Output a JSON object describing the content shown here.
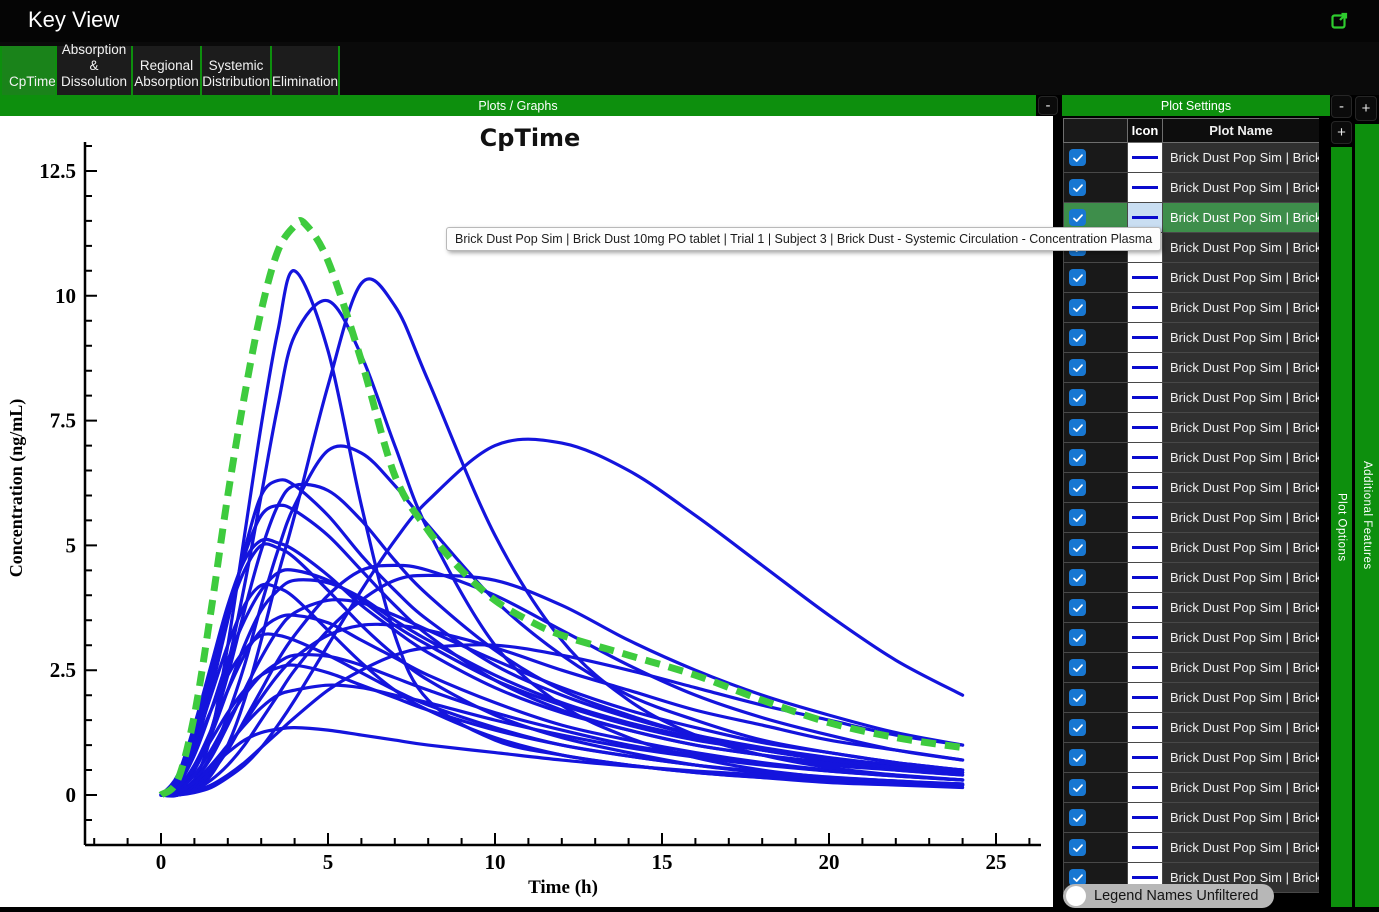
{
  "window": {
    "title": "Key View"
  },
  "tabs": [
    {
      "label": "CpTime",
      "active": true
    },
    {
      "label": "Absorption & Dissolution",
      "active": false
    },
    {
      "label": "Regional Absorption",
      "active": false
    },
    {
      "label": "Systemic Distribution",
      "active": false
    },
    {
      "label": "Elimination",
      "active": false
    }
  ],
  "panels": {
    "plots": {
      "header": "Plots / Graphs",
      "collapse_label": "-"
    },
    "settings": {
      "header": "Plot Settings",
      "collapse_label": "-"
    },
    "plot_options": {
      "label": "Plot Options",
      "expand_label": "+"
    },
    "additional_features": {
      "label": "Additional Features",
      "expand_label": "+"
    }
  },
  "tooltip": {
    "text": "Brick Dust Pop Sim | Brick Dust 10mg PO tablet | Trial 1 | Subject 3 | Brick Dust - Systemic Circulation - Concentration Plasma"
  },
  "plot_settings": {
    "columns": {
      "check": "",
      "icon": "Icon",
      "plot_name": "Plot Name"
    },
    "legend_toggle": {
      "label": "Legend Names Unfiltered",
      "on": false
    },
    "rows": [
      {
        "checked": true,
        "selected": false,
        "label": "Brick Dust Pop Sim | Brick"
      },
      {
        "checked": true,
        "selected": false,
        "label": "Brick Dust Pop Sim | Brick"
      },
      {
        "checked": true,
        "selected": true,
        "label": "Brick Dust Pop Sim | Brick"
      },
      {
        "checked": true,
        "selected": false,
        "label": "Brick Dust Pop Sim | Brick"
      },
      {
        "checked": true,
        "selected": false,
        "label": "Brick Dust Pop Sim | Brick"
      },
      {
        "checked": true,
        "selected": false,
        "label": "Brick Dust Pop Sim | Brick"
      },
      {
        "checked": true,
        "selected": false,
        "label": "Brick Dust Pop Sim | Brick"
      },
      {
        "checked": true,
        "selected": false,
        "label": "Brick Dust Pop Sim | Brick"
      },
      {
        "checked": true,
        "selected": false,
        "label": "Brick Dust Pop Sim | Brick"
      },
      {
        "checked": true,
        "selected": false,
        "label": "Brick Dust Pop Sim | Brick"
      },
      {
        "checked": true,
        "selected": false,
        "label": "Brick Dust Pop Sim | Brick"
      },
      {
        "checked": true,
        "selected": false,
        "label": "Brick Dust Pop Sim | Brick"
      },
      {
        "checked": true,
        "selected": false,
        "label": "Brick Dust Pop Sim | Brick"
      },
      {
        "checked": true,
        "selected": false,
        "label": "Brick Dust Pop Sim | Brick"
      },
      {
        "checked": true,
        "selected": false,
        "label": "Brick Dust Pop Sim | Brick"
      },
      {
        "checked": true,
        "selected": false,
        "label": "Brick Dust Pop Sim | Brick"
      },
      {
        "checked": true,
        "selected": false,
        "label": "Brick Dust Pop Sim | Brick"
      },
      {
        "checked": true,
        "selected": false,
        "label": "Brick Dust Pop Sim | Brick"
      },
      {
        "checked": true,
        "selected": false,
        "label": "Brick Dust Pop Sim | Brick"
      },
      {
        "checked": true,
        "selected": false,
        "label": "Brick Dust Pop Sim | Brick"
      },
      {
        "checked": true,
        "selected": false,
        "label": "Brick Dust Pop Sim | Brick"
      },
      {
        "checked": true,
        "selected": false,
        "label": "Brick Dust Pop Sim | Brick"
      },
      {
        "checked": true,
        "selected": false,
        "label": "Brick Dust Pop Sim | Brick"
      },
      {
        "checked": true,
        "selected": false,
        "label": "Brick Dust Pop Sim | Brick"
      },
      {
        "checked": true,
        "selected": false,
        "label": "Brick Dust Pop Sim | Brick"
      }
    ]
  },
  "colors": {
    "accent_green": "#0d8f0d",
    "tab_active_green": "#1a831a",
    "row_selected_green": "#3e8e4b",
    "checkbox_blue": "#1877d2",
    "curve_blue": "#1414dd",
    "curve_green": "#3ecb3e",
    "selected_icon_bg": "#c9def2"
  },
  "chart_data": {
    "type": "line",
    "title": "CpTime",
    "xlabel": "Time (h)",
    "ylabel": "Concentration (ng/mL)",
    "xlim": [
      -2.3,
      26.3
    ],
    "ylim": [
      -1.0,
      13.4
    ],
    "xticks": [
      0,
      5,
      10,
      15,
      20,
      25
    ],
    "yticks": [
      0,
      2.5,
      5,
      7.5,
      10,
      12.5
    ],
    "x_minor_step": 1,
    "y_minor_step": 0.5,
    "grid": false,
    "legend": "hidden (Plot Settings panel)",
    "t": [
      0,
      0.5,
      1,
      1.5,
      2,
      2.5,
      3,
      3.5,
      4,
      5,
      6,
      7,
      8,
      10,
      12,
      14,
      16,
      18,
      20,
      22,
      24
    ],
    "series": [
      {
        "values": [
          0,
          0,
          0.3,
          1.2,
          3.0,
          5.2,
          7.4,
          9.3,
          10.5,
          8.9,
          5.8,
          3.2,
          1.9,
          1.1,
          0.8,
          0.6,
          0.45,
          0.35,
          0.3,
          0.25,
          0.2
        ]
      },
      {
        "values": [
          0,
          0,
          0.1,
          0.4,
          1.0,
          1.9,
          3.1,
          4.4,
          5.6,
          8.2,
          10.25,
          9.8,
          8.3,
          5.2,
          3.1,
          1.9,
          1.2,
          0.8,
          0.55,
          0.4,
          0.3
        ]
      },
      {
        "values": [
          0,
          0.1,
          0.5,
          1.3,
          2.6,
          4.2,
          6.0,
          7.8,
          9.2,
          9.9,
          8.8,
          7.0,
          5.3,
          3.0,
          1.8,
          1.15,
          0.75,
          0.5,
          0.35,
          0.25,
          0.2
        ]
      },
      {
        "values": [
          0,
          0,
          0.05,
          0.15,
          0.35,
          0.6,
          0.95,
          1.4,
          1.9,
          3.0,
          4.1,
          5.1,
          5.9,
          7.0,
          7.05,
          6.5,
          5.6,
          4.6,
          3.6,
          2.7,
          2.0
        ]
      },
      {
        "values": [
          0,
          0.05,
          0.3,
          0.8,
          1.6,
          2.6,
          3.8,
          4.9,
          5.8,
          6.9,
          6.85,
          6.2,
          5.4,
          3.9,
          2.8,
          2.0,
          1.5,
          1.1,
          0.85,
          0.65,
          0.5
        ]
      },
      {
        "values": [
          0,
          0.2,
          0.9,
          2.1,
          3.5,
          4.9,
          6.0,
          6.3,
          6.2,
          5.6,
          4.8,
          4.1,
          3.5,
          2.6,
          2.0,
          1.55,
          1.2,
          0.95,
          0.75,
          0.6,
          0.5
        ]
      },
      {
        "values": [
          0,
          0.1,
          0.5,
          1.3,
          2.4,
          3.7,
          4.9,
          5.8,
          6.2,
          6.1,
          5.5,
          4.7,
          4.0,
          2.9,
          2.1,
          1.6,
          1.2,
          0.9,
          0.7,
          0.55,
          0.45
        ]
      },
      {
        "values": [
          0,
          0.3,
          1.1,
          2.3,
          3.6,
          4.8,
          5.6,
          5.8,
          5.7,
          5.2,
          4.5,
          3.8,
          3.2,
          2.3,
          1.7,
          1.3,
          1.0,
          0.8,
          0.6,
          0.5,
          0.4
        ]
      },
      {
        "values": [
          0,
          0.4,
          1.4,
          2.6,
          3.8,
          4.7,
          5.1,
          5.05,
          4.9,
          4.4,
          3.8,
          3.3,
          2.85,
          2.15,
          1.65,
          1.3,
          1.0,
          0.8,
          0.65,
          0.5,
          0.4
        ]
      },
      {
        "values": [
          0,
          0.3,
          1.2,
          2.4,
          3.6,
          4.5,
          5.0,
          4.95,
          4.75,
          4.1,
          3.4,
          2.8,
          2.3,
          1.6,
          1.15,
          0.85,
          0.6,
          0.45,
          0.35,
          0.25,
          0.2
        ]
      },
      {
        "values": [
          0,
          0,
          0.15,
          0.45,
          0.9,
          1.5,
          2.1,
          2.7,
          3.2,
          4.0,
          4.5,
          4.6,
          4.5,
          4.0,
          3.3,
          2.6,
          2.0,
          1.55,
          1.2,
          0.9,
          0.7
        ]
      },
      {
        "values": [
          0,
          0.2,
          0.8,
          1.7,
          2.7,
          3.5,
          4.1,
          4.45,
          4.5,
          4.3,
          3.9,
          3.4,
          3.0,
          2.3,
          1.8,
          1.4,
          1.1,
          0.9,
          0.7,
          0.55,
          0.45
        ]
      },
      {
        "values": [
          0,
          0,
          0.1,
          0.3,
          0.6,
          1.0,
          1.5,
          2.0,
          2.5,
          3.3,
          3.9,
          4.3,
          4.4,
          4.3,
          3.8,
          3.1,
          2.5,
          2.0,
          1.6,
          1.25,
          1.0
        ]
      },
      {
        "values": [
          0,
          0.1,
          0.5,
          1.2,
          2.1,
          3.0,
          3.7,
          4.1,
          4.3,
          4.25,
          3.95,
          3.5,
          3.1,
          2.4,
          1.85,
          1.45,
          1.15,
          0.9,
          0.7,
          0.55,
          0.45
        ]
      },
      {
        "values": [
          0,
          0.25,
          1.0,
          2.0,
          3.0,
          3.8,
          4.2,
          4.15,
          3.95,
          3.3,
          2.65,
          2.1,
          1.7,
          1.15,
          0.8,
          0.6,
          0.45,
          0.35,
          0.25,
          0.2,
          0.15
        ]
      },
      {
        "values": [
          0,
          0.05,
          0.3,
          0.75,
          1.4,
          2.1,
          2.75,
          3.3,
          3.65,
          3.9,
          3.85,
          3.6,
          3.3,
          2.7,
          2.15,
          1.7,
          1.35,
          1.05,
          0.85,
          0.65,
          0.5
        ]
      },
      {
        "values": [
          0,
          0.15,
          0.6,
          1.3,
          2.1,
          2.8,
          3.3,
          3.55,
          3.6,
          3.45,
          3.1,
          2.75,
          2.4,
          1.85,
          1.4,
          1.1,
          0.85,
          0.65,
          0.5,
          0.4,
          0.3
        ]
      },
      {
        "values": [
          0,
          0,
          0.2,
          0.5,
          0.95,
          1.45,
          1.95,
          2.4,
          2.75,
          3.2,
          3.4,
          3.4,
          3.3,
          2.95,
          2.5,
          2.1,
          1.7,
          1.4,
          1.1,
          0.9,
          0.7
        ]
      },
      {
        "values": [
          0,
          0.25,
          0.9,
          1.7,
          2.4,
          2.9,
          3.2,
          3.2,
          3.1,
          2.8,
          2.45,
          2.1,
          1.8,
          1.35,
          1.0,
          0.78,
          0.6,
          0.45,
          0.35,
          0.28,
          0.2
        ]
      },
      {
        "values": [
          0,
          0,
          0.08,
          0.2,
          0.4,
          0.65,
          0.95,
          1.25,
          1.55,
          2.1,
          2.5,
          2.8,
          2.95,
          3.0,
          2.8,
          2.5,
          2.15,
          1.8,
          1.5,
          1.2,
          1.0
        ]
      },
      {
        "values": [
          0,
          0.1,
          0.4,
          0.9,
          1.5,
          2.0,
          2.4,
          2.65,
          2.8,
          2.78,
          2.6,
          2.35,
          2.1,
          1.65,
          1.3,
          1.0,
          0.8,
          0.62,
          0.48,
          0.38,
          0.3
        ]
      },
      {
        "values": [
          0,
          0.15,
          0.55,
          1.1,
          1.65,
          2.1,
          2.4,
          2.55,
          2.6,
          2.45,
          2.2,
          1.95,
          1.7,
          1.3,
          1.0,
          0.78,
          0.6,
          0.47,
          0.36,
          0.28,
          0.22
        ]
      },
      {
        "values": [
          0,
          0.05,
          0.25,
          0.6,
          1.0,
          1.4,
          1.75,
          2.0,
          2.1,
          2.2,
          2.15,
          2.0,
          1.85,
          1.5,
          1.2,
          0.95,
          0.76,
          0.6,
          0.48,
          0.38,
          0.3
        ]
      },
      {
        "values": [
          0,
          0.06,
          0.25,
          0.55,
          0.85,
          1.1,
          1.25,
          1.32,
          1.35,
          1.3,
          1.2,
          1.1,
          1.0,
          0.85,
          0.7,
          0.58,
          0.48,
          0.4,
          0.33,
          0.27,
          0.22
        ]
      }
    ],
    "mean_series": {
      "style": "dashed",
      "t": [
        0,
        0.5,
        1,
        1.5,
        2,
        2.5,
        3,
        3.5,
        4,
        4.3,
        5,
        6,
        7,
        8,
        9,
        10,
        11,
        12,
        14,
        16,
        18,
        20,
        22,
        24
      ],
      "values": [
        0,
        0.3,
        1.6,
        3.7,
        6.0,
        8.0,
        9.7,
        10.9,
        11.4,
        11.45,
        10.7,
        8.7,
        6.4,
        5.3,
        4.5,
        3.9,
        3.5,
        3.2,
        2.8,
        2.4,
        1.9,
        1.45,
        1.15,
        0.95
      ]
    }
  }
}
